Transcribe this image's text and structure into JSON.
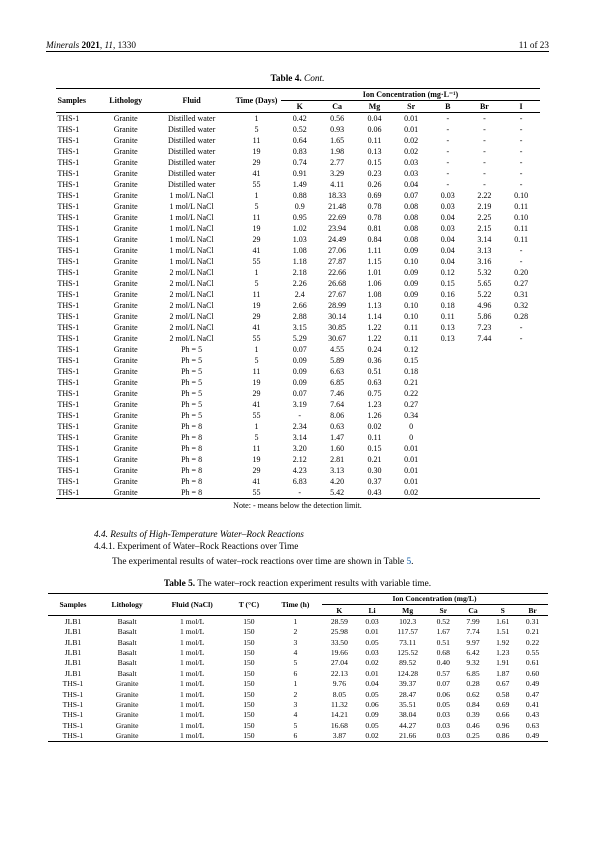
{
  "header": {
    "journal": "Minerals",
    "year": "2021",
    "vol": "11",
    "art": "1330",
    "page": "11 of 23"
  },
  "table4": {
    "caption_label": "Table 4.",
    "caption_rest": "Cont.",
    "head": {
      "samples": "Samples",
      "lith": "Lithology",
      "fluid": "Fluid",
      "time": "Time (Days)",
      "group": "Ion Concentration (mg·L⁻¹)",
      "ions": [
        "K",
        "Ca",
        "Mg",
        "Sr",
        "B",
        "Br",
        "I"
      ]
    },
    "rows": [
      [
        "THS-1",
        "Granite",
        "Distilled water",
        "1",
        "0.42",
        "0.56",
        "0.04",
        "0.01",
        "-",
        "-",
        "-"
      ],
      [
        "THS-1",
        "Granite",
        "Distilled water",
        "5",
        "0.52",
        "0.93",
        "0.06",
        "0.01",
        "-",
        "-",
        "-"
      ],
      [
        "THS-1",
        "Granite",
        "Distilled water",
        "11",
        "0.64",
        "1.65",
        "0.11",
        "0.02",
        "-",
        "-",
        "-"
      ],
      [
        "THS-1",
        "Granite",
        "Distilled water",
        "19",
        "0.83",
        "1.98",
        "0.13",
        "0.02",
        "-",
        "-",
        "-"
      ],
      [
        "THS-1",
        "Granite",
        "Distilled water",
        "29",
        "0.74",
        "2.77",
        "0.15",
        "0.03",
        "-",
        "-",
        "-"
      ],
      [
        "THS-1",
        "Granite",
        "Distilled water",
        "41",
        "0.91",
        "3.29",
        "0.23",
        "0.03",
        "-",
        "-",
        "-"
      ],
      [
        "THS-1",
        "Granite",
        "Distilled water",
        "55",
        "1.49",
        "4.11",
        "0.26",
        "0.04",
        "-",
        "-",
        "-"
      ],
      [
        "THS-1",
        "Granite",
        "1 mol/L NaCl",
        "1",
        "0.88",
        "18.33",
        "0.69",
        "0.07",
        "0.03",
        "2.22",
        "0.10"
      ],
      [
        "THS-1",
        "Granite",
        "1 mol/L NaCl",
        "5",
        "0.9",
        "21.48",
        "0.78",
        "0.08",
        "0.03",
        "2.19",
        "0.11"
      ],
      [
        "THS-1",
        "Granite",
        "1 mol/L NaCl",
        "11",
        "0.95",
        "22.69",
        "0.78",
        "0.08",
        "0.04",
        "2.25",
        "0.10"
      ],
      [
        "THS-1",
        "Granite",
        "1 mol/L NaCl",
        "19",
        "1.02",
        "23.94",
        "0.81",
        "0.08",
        "0.03",
        "2.15",
        "0.11"
      ],
      [
        "THS-1",
        "Granite",
        "1 mol/L NaCl",
        "29",
        "1.03",
        "24.49",
        "0.84",
        "0.08",
        "0.04",
        "3.14",
        "0.11"
      ],
      [
        "THS-1",
        "Granite",
        "1 mol/L NaCl",
        "41",
        "1.08",
        "27.06",
        "1.11",
        "0.09",
        "0.04",
        "3.13",
        "-"
      ],
      [
        "THS-1",
        "Granite",
        "1 mol/L NaCl",
        "55",
        "1.18",
        "27.87",
        "1.15",
        "0.10",
        "0.04",
        "3.16",
        "-"
      ],
      [
        "THS-1",
        "Granite",
        "2 mol/L NaCl",
        "1",
        "2.18",
        "22.66",
        "1.01",
        "0.09",
        "0.12",
        "5.32",
        "0.20"
      ],
      [
        "THS-1",
        "Granite",
        "2 mol/L NaCl",
        "5",
        "2.26",
        "26.68",
        "1.06",
        "0.09",
        "0.15",
        "5.65",
        "0.27"
      ],
      [
        "THS-1",
        "Granite",
        "2 mol/L NaCl",
        "11",
        "2.4",
        "27.67",
        "1.08",
        "0.09",
        "0.16",
        "5.22",
        "0.31"
      ],
      [
        "THS-1",
        "Granite",
        "2 mol/L NaCl",
        "19",
        "2.66",
        "28.99",
        "1.13",
        "0.10",
        "0.18",
        "4.96",
        "0.32"
      ],
      [
        "THS-1",
        "Granite",
        "2 mol/L NaCl",
        "29",
        "2.88",
        "30.14",
        "1.14",
        "0.10",
        "0.11",
        "5.86",
        "0.28"
      ],
      [
        "THS-1",
        "Granite",
        "2 mol/L NaCl",
        "41",
        "3.15",
        "30.85",
        "1.22",
        "0.11",
        "0.13",
        "7.23",
        "-"
      ],
      [
        "THS-1",
        "Granite",
        "2 mol/L NaCl",
        "55",
        "5.29",
        "30.67",
        "1.22",
        "0.11",
        "0.13",
        "7.44",
        "-"
      ],
      [
        "THS-1",
        "Granite",
        "Ph = 5",
        "1",
        "0.07",
        "4.55",
        "0.24",
        "0.12",
        "",
        "",
        ""
      ],
      [
        "THS-1",
        "Granite",
        "Ph = 5",
        "5",
        "0.09",
        "5.89",
        "0.36",
        "0.15",
        "",
        "",
        ""
      ],
      [
        "THS-1",
        "Granite",
        "Ph = 5",
        "11",
        "0.09",
        "6.63",
        "0.51",
        "0.18",
        "",
        "",
        ""
      ],
      [
        "THS-1",
        "Granite",
        "Ph = 5",
        "19",
        "0.09",
        "6.85",
        "0.63",
        "0.21",
        "",
        "",
        ""
      ],
      [
        "THS-1",
        "Granite",
        "Ph = 5",
        "29",
        "0.07",
        "7.46",
        "0.75",
        "0.22",
        "",
        "",
        ""
      ],
      [
        "THS-1",
        "Granite",
        "Ph = 5",
        "41",
        "3.19",
        "7.64",
        "1.23",
        "0.27",
        "",
        "",
        ""
      ],
      [
        "THS-1",
        "Granite",
        "Ph = 5",
        "55",
        "-",
        "8.06",
        "1.26",
        "0.34",
        "",
        "",
        ""
      ],
      [
        "THS-1",
        "Granite",
        "Ph = 8",
        "1",
        "2.34",
        "0.63",
        "0.02",
        "0",
        "",
        "",
        ""
      ],
      [
        "THS-1",
        "Granite",
        "Ph = 8",
        "5",
        "3.14",
        "1.47",
        "0.11",
        "0",
        "",
        "",
        ""
      ],
      [
        "THS-1",
        "Granite",
        "Ph = 8",
        "11",
        "3.20",
        "1.60",
        "0.15",
        "0.01",
        "",
        "",
        ""
      ],
      [
        "THS-1",
        "Granite",
        "Ph = 8",
        "19",
        "2.12",
        "2.81",
        "0.21",
        "0.01",
        "",
        "",
        ""
      ],
      [
        "THS-1",
        "Granite",
        "Ph = 8",
        "29",
        "4.23",
        "3.13",
        "0.30",
        "0.01",
        "",
        "",
        ""
      ],
      [
        "THS-1",
        "Granite",
        "Ph = 8",
        "41",
        "6.83",
        "4.20",
        "0.37",
        "0.01",
        "",
        "",
        ""
      ],
      [
        "THS-1",
        "Granite",
        "Ph = 8",
        "55",
        "-",
        "5.42",
        "0.43",
        "0.02",
        "",
        "",
        ""
      ]
    ],
    "note": "Note: - means below the detection limit."
  },
  "section": {
    "heading": "4.4. Results of High-Temperature Water–Rock Reactions",
    "sub": "4.4.1. Experiment of Water–Rock Reactions over Time",
    "text_a": "The experimental results of water–rock reactions over time are shown in Table ",
    "link": "5",
    "text_b": "."
  },
  "table5": {
    "caption_label": "Table 5.",
    "caption_rest": "The water–rock reaction experiment results with variable time.",
    "head": {
      "samples": "Samples",
      "lith": "Lithology",
      "fluid": "Fluid (NaCl)",
      "temp": "T (°C)",
      "time": "Time (h)",
      "group": "Ion Concentration (mg/L)",
      "ions": [
        "K",
        "Li",
        "Mg",
        "Sr",
        "Ca",
        "S",
        "Br"
      ]
    },
    "rows": [
      [
        "JLB1",
        "Basalt",
        "1 mol/L",
        "150",
        "1",
        "28.59",
        "0.03",
        "102.3",
        "0.52",
        "7.99",
        "1.61",
        "0.31"
      ],
      [
        "JLB1",
        "Basalt",
        "1 mol/L",
        "150",
        "2",
        "25.98",
        "0.01",
        "117.57",
        "1.67",
        "7.74",
        "1.51",
        "0.21"
      ],
      [
        "JLB1",
        "Basalt",
        "1 mol/L",
        "150",
        "3",
        "33.50",
        "0.05",
        "73.11",
        "0.51",
        "9.97",
        "1.92",
        "0.22"
      ],
      [
        "JLB1",
        "Basalt",
        "1 mol/L",
        "150",
        "4",
        "19.66",
        "0.03",
        "125.52",
        "0.68",
        "6.42",
        "1.23",
        "0.55"
      ],
      [
        "JLB1",
        "Basalt",
        "1 mol/L",
        "150",
        "5",
        "27.04",
        "0.02",
        "89.52",
        "0.40",
        "9.32",
        "1.91",
        "0.61"
      ],
      [
        "JLB1",
        "Basalt",
        "1 mol/L",
        "150",
        "6",
        "22.13",
        "0.01",
        "124.28",
        "0.57",
        "6.85",
        "1.87",
        "0.60"
      ],
      [
        "THS-1",
        "Granite",
        "1 mol/L",
        "150",
        "1",
        "9.76",
        "0.04",
        "39.37",
        "0.07",
        "0.28",
        "0.67",
        "0.49"
      ],
      [
        "THS-1",
        "Granite",
        "1 mol/L",
        "150",
        "2",
        "8.05",
        "0.05",
        "28.47",
        "0.06",
        "0.62",
        "0.58",
        "0.47"
      ],
      [
        "THS-1",
        "Granite",
        "1 mol/L",
        "150",
        "3",
        "11.32",
        "0.06",
        "35.51",
        "0.05",
        "0.84",
        "0.69",
        "0.41"
      ],
      [
        "THS-1",
        "Granite",
        "1 mol/L",
        "150",
        "4",
        "14.21",
        "0.09",
        "38.04",
        "0.03",
        "0.39",
        "0.66",
        "0.43"
      ],
      [
        "THS-1",
        "Granite",
        "1 mol/L",
        "150",
        "5",
        "16.68",
        "0.05",
        "44.27",
        "0.03",
        "0.46",
        "0.96",
        "0.63"
      ],
      [
        "THS-1",
        "Granite",
        "1 mol/L",
        "150",
        "6",
        "3.87",
        "0.02",
        "21.66",
        "0.03",
        "0.25",
        "0.86",
        "0.49"
      ]
    ]
  }
}
